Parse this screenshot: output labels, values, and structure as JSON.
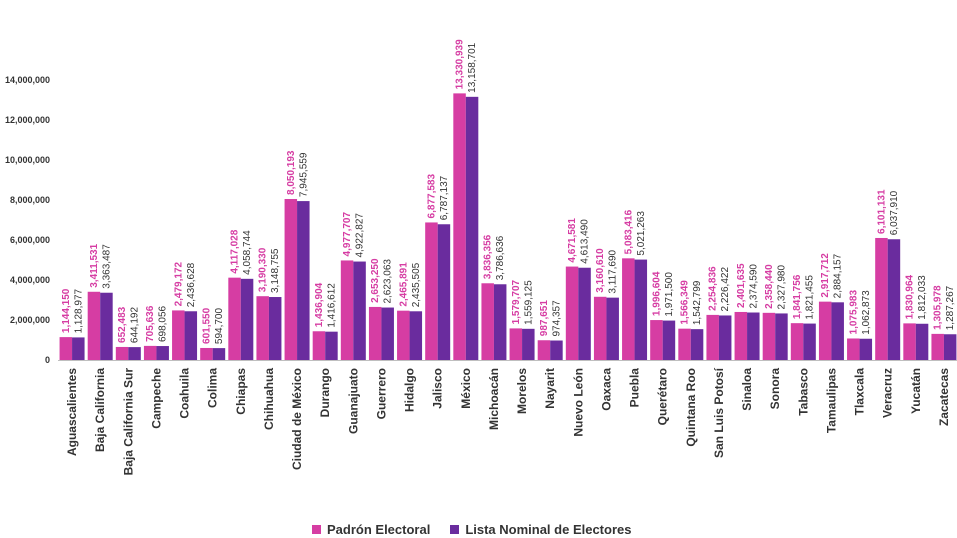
{
  "colors": {
    "padron": "#d63da3",
    "lista": "#6a2c9e",
    "axis_text": "#333333",
    "grid": "#d9d9d9"
  },
  "legend": {
    "padron_label": "Padrón Electoral",
    "lista_label": "Lista Nominal de Electores"
  },
  "chart_data": {
    "type": "bar",
    "title": "",
    "xlabel": "",
    "ylabel": "",
    "ylim": [
      0,
      14000000
    ],
    "yticks": [
      0,
      2000000,
      4000000,
      6000000,
      8000000,
      10000000,
      12000000,
      14000000
    ],
    "ytick_labels": [
      "0",
      "2,000,000",
      "4,000,000",
      "6,000,000",
      "8,000,000",
      "10,000,000",
      "12,000,000",
      "14,000,000"
    ],
    "legend_position": "bottom",
    "categories": [
      "Aguascalientes",
      "Baja California",
      "Baja California Sur",
      "Campeche",
      "Coahuila",
      "Colima",
      "Chiapas",
      "Chihuahua",
      "Ciudad de México",
      "Durango",
      "Guanajuato",
      "Guerrero",
      "Hidalgo",
      "Jalisco",
      "México",
      "Michoacán",
      "Morelos",
      "Nayarit",
      "Nuevo León",
      "Oaxaca",
      "Puebla",
      "Querétaro",
      "Quintana Roo",
      "San Luis Potosí",
      "Sinaloa",
      "Sonora",
      "Tabasco",
      "Tamaulipas",
      "Tlaxcala",
      "Veracruz",
      "Yucatán",
      "Zacatecas"
    ],
    "series": [
      {
        "name": "Padrón Electoral",
        "values": [
          1144150,
          3411531,
          652483,
          705636,
          2479172,
          601550,
          4117028,
          3190330,
          8050193,
          1436904,
          4977707,
          2653250,
          2465891,
          6877583,
          13330939,
          3836356,
          1579707,
          987651,
          4671581,
          3160610,
          5083416,
          1996604,
          1566349,
          2254836,
          2401635,
          2358440,
          1841756,
          2917712,
          1075983,
          6101131,
          1830964,
          1305978
        ],
        "labels": [
          "1,144,150",
          "3,411,531",
          "652,483",
          "705,636",
          "2,479,172",
          "601,550",
          "4,117,028",
          "3,190,330",
          "8,050,193",
          "1,436,904",
          "4,977,707",
          "2,653,250",
          "2,465,891",
          "6,877,583",
          "13,330,939",
          "3,836,356",
          "1,579,707",
          "987,651",
          "4,671,581",
          "3,160,610",
          "5,083,416",
          "1,996,604",
          "1,566,349",
          "2,254,836",
          "2,401,635",
          "2,358,440",
          "1,841,756",
          "2,917,712",
          "1,075,983",
          "6,101,131",
          "1,830,964",
          "1,305,978"
        ]
      },
      {
        "name": "Lista Nominal de Electores",
        "values": [
          1128977,
          3363487,
          644192,
          698056,
          2436628,
          594700,
          4058744,
          3148755,
          7945559,
          1416612,
          4922827,
          2623063,
          2435505,
          6787137,
          13158701,
          3786636,
          1559125,
          974357,
          4613490,
          3117690,
          5021263,
          1971500,
          1542799,
          2226422,
          2374590,
          2327980,
          1821455,
          2884157,
          1062873,
          6037910,
          1812033,
          1287267
        ],
        "labels": [
          "1,128,977",
          "3,363,487",
          "644,192",
          "698,056",
          "2,436,628",
          "594,700",
          "4,058,744",
          "3,148,755",
          "7,945,559",
          "1,416,612",
          "4,922,827",
          "2,623,063",
          "2,435,505",
          "6,787,137",
          "13,158,701",
          "3,786,636",
          "1,559,125",
          "974,357",
          "4,613,490",
          "3,117,690",
          "5,021,263",
          "1,971,500",
          "1,542,799",
          "2,226,422",
          "2,374,590",
          "2,327,980",
          "1,821,455",
          "2,884,157",
          "1,062,873",
          "6,037,910",
          "1,812,033",
          "1,287,267"
        ]
      }
    ]
  }
}
